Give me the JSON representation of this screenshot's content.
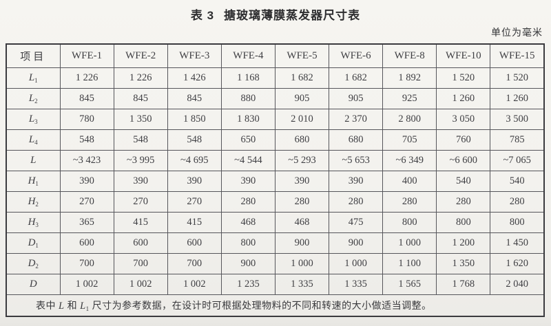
{
  "page": {
    "title_prefix": "表 3",
    "title_name": "搪玻璃薄膜蒸发器尺寸表",
    "unit_note": "单位为毫米"
  },
  "colors": {
    "paper": "#f3f2ee",
    "ink": "#3e3e42",
    "grid_line": "#55555a",
    "outer_border": "#3a3a3e"
  },
  "table": {
    "header": {
      "item_label": "项目",
      "models": [
        "WFE-1",
        "WFE-2",
        "WFE-3",
        "WFE-4",
        "WFE-5",
        "WFE-6",
        "WFE-8",
        "WFE-10",
        "WFE-15"
      ]
    },
    "rows": [
      {
        "label": "L",
        "sub": "1",
        "values": [
          "1 226",
          "1 226",
          "1 426",
          "1 168",
          "1 682",
          "1 682",
          "1 892",
          "1 520",
          "1 520"
        ]
      },
      {
        "label": "L",
        "sub": "2",
        "values": [
          "845",
          "845",
          "845",
          "880",
          "905",
          "905",
          "925",
          "1 260",
          "1 260"
        ]
      },
      {
        "label": "L",
        "sub": "3",
        "values": [
          "780",
          "1 350",
          "1 850",
          "1 830",
          "2 010",
          "2 370",
          "2 800",
          "3 050",
          "3 500"
        ]
      },
      {
        "label": "L",
        "sub": "4",
        "values": [
          "548",
          "548",
          "548",
          "650",
          "680",
          "680",
          "705",
          "760",
          "785"
        ]
      },
      {
        "label": "L",
        "sub": "",
        "values": [
          "~3 423",
          "~3 995",
          "~4 695",
          "~4 544",
          "~5 293",
          "~5 653",
          "~6 349",
          "~6 600",
          "~7 065"
        ]
      },
      {
        "label": "H",
        "sub": "1",
        "values": [
          "390",
          "390",
          "390",
          "390",
          "390",
          "390",
          "400",
          "540",
          "540"
        ]
      },
      {
        "label": "H",
        "sub": "2",
        "values": [
          "270",
          "270",
          "270",
          "280",
          "280",
          "280",
          "280",
          "280",
          "280"
        ]
      },
      {
        "label": "H",
        "sub": "3",
        "values": [
          "365",
          "415",
          "415",
          "468",
          "468",
          "475",
          "800",
          "800",
          "800"
        ]
      },
      {
        "label": "D",
        "sub": "1",
        "values": [
          "600",
          "600",
          "600",
          "800",
          "900",
          "900",
          "1 000",
          "1 200",
          "1 450"
        ]
      },
      {
        "label": "D",
        "sub": "2",
        "values": [
          "700",
          "700",
          "700",
          "900",
          "1 000",
          "1 000",
          "1 100",
          "1 350",
          "1 620"
        ]
      },
      {
        "label": "D",
        "sub": "",
        "values": [
          "1 002",
          "1 002",
          "1 002",
          "1 235",
          "1 335",
          "1 335",
          "1 565",
          "1 768",
          "2 040"
        ]
      }
    ],
    "footnote": {
      "part1": "表中 ",
      "sym1": "L",
      "part2": " 和 ",
      "sym2": "L",
      "sym2_sub": "1",
      "part3": " 尺寸为参考数据，在设计时可根据处理物料的不同和转速的大小做适当调整。"
    }
  }
}
